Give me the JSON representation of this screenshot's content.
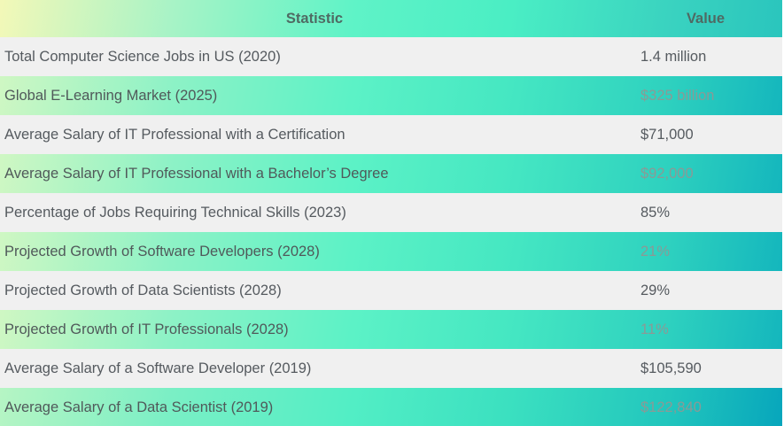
{
  "table": {
    "headers": {
      "statistic": "Statistic",
      "value": "Value"
    },
    "rows": [
      {
        "statistic": "Total Computer Science Jobs in US (2020)",
        "value": "1.4 million"
      },
      {
        "statistic": "Global E-Learning Market (2025)",
        "value": "$325 billion"
      },
      {
        "statistic": "Average Salary of IT Professional with a Certification",
        "value": "$71,000"
      },
      {
        "statistic": "Average Salary of IT Professional with a Bachelor’s Degree",
        "value": "$92,000"
      },
      {
        "statistic": "Percentage of Jobs Requiring Technical Skills (2023)",
        "value": "85%"
      },
      {
        "statistic": "Projected Growth of Software Developers (2028)",
        "value": "21%"
      },
      {
        "statistic": "Projected Growth of Data Scientists (2028)",
        "value": "29%"
      },
      {
        "statistic": "Projected Growth of IT Professionals (2028)",
        "value": "11%"
      },
      {
        "statistic": "Average Salary of a Software Developer (2019)",
        "value": "$105,590"
      },
      {
        "statistic": "Average Salary of a Data Scientist (2019)",
        "value": "$122,840"
      }
    ]
  },
  "colors": {
    "plain_row": "#f0f0f0",
    "gradient_start": "#f3f8b8",
    "gradient_mid": "#5ff3c7",
    "gradient_end": "#07a6bc",
    "text": "#555a5f"
  }
}
